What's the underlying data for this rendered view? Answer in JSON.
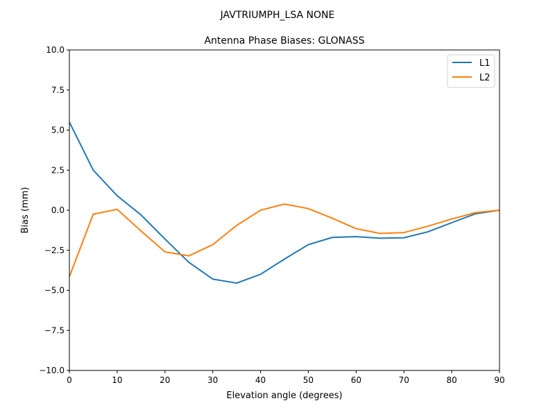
{
  "figure": {
    "suptitle": "JAVTRIUMPH_LSA  NONE",
    "title": "Antenna Phase Biases: GLONASS",
    "xlabel": "Elevation angle (degrees)",
    "ylabel": "Bias (mm)",
    "legend": [
      {
        "label": "L1",
        "color": "#1f77b4"
      },
      {
        "label": "L2",
        "color": "#ff7f0e"
      }
    ],
    "xticks": [
      "0",
      "10",
      "20",
      "30",
      "40",
      "50",
      "60",
      "70",
      "80",
      "90"
    ],
    "yticks": [
      "10.0",
      "7.5",
      "5.0",
      "2.5",
      "0.0",
      "−2.5",
      "−5.0",
      "−7.5",
      "−10.0"
    ]
  },
  "chart_data": {
    "type": "line",
    "title": "Antenna Phase Biases: GLONASS",
    "suptitle": "JAVTRIUMPH_LSA  NONE",
    "xlabel": "Elevation angle (degrees)",
    "ylabel": "Bias (mm)",
    "xlim": [
      0,
      90
    ],
    "ylim": [
      -10,
      10
    ],
    "grid": false,
    "legend_position": "upper right",
    "x": [
      0,
      5,
      10,
      15,
      20,
      25,
      30,
      35,
      40,
      45,
      50,
      55,
      60,
      65,
      70,
      75,
      80,
      85,
      90
    ],
    "series": [
      {
        "name": "L1",
        "color": "#1f77b4",
        "values": [
          5.5,
          2.5,
          0.9,
          -0.3,
          -1.8,
          -3.25,
          -4.3,
          -4.55,
          -4.0,
          -3.05,
          -2.15,
          -1.7,
          -1.65,
          -1.75,
          -1.72,
          -1.35,
          -0.78,
          -0.22,
          0.0
        ]
      },
      {
        "name": "L2",
        "color": "#ff7f0e",
        "values": [
          -4.15,
          -0.25,
          0.05,
          -1.3,
          -2.6,
          -2.85,
          -2.15,
          -0.95,
          0.0,
          0.38,
          0.1,
          -0.5,
          -1.15,
          -1.45,
          -1.4,
          -1.0,
          -0.55,
          -0.15,
          0.0
        ]
      }
    ]
  }
}
